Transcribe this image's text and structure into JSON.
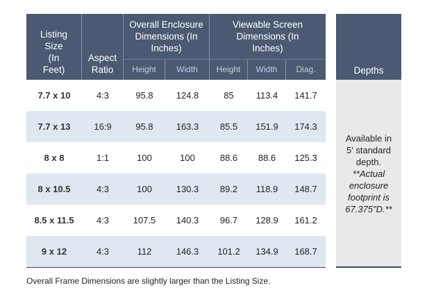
{
  "table": {
    "headers": {
      "listing_size": "Listing Size (In Feet)",
      "aspect_ratio": "Aspect Ratio",
      "enclosure": "Overall Enclosure Dimensions (In Inches)",
      "screen": "Viewable Screen Dimensions (In Inches)",
      "sub": [
        "Height",
        "Width",
        "Height",
        "Width",
        "Diag."
      ]
    },
    "rows": [
      [
        "7.7 x 10",
        "4:3",
        "95.8",
        "124.8",
        "85",
        "113.4",
        "141.7"
      ],
      [
        "7.7 x 13",
        "16:9",
        "95.8",
        "163.3",
        "85.5",
        "151.9",
        "174.3"
      ],
      [
        "8 x 8",
        "1:1",
        "100",
        "100",
        "88.6",
        "88.6",
        "125.3"
      ],
      [
        "8 x 10.5",
        "4:3",
        "100",
        "130.3",
        "89.2",
        "118.9",
        "148.7"
      ],
      [
        "8.5 x 11.5",
        "4:3",
        "107.5",
        "140.3",
        "96.7",
        "128.9",
        "161.2"
      ],
      [
        "9 x 12",
        "4:3",
        "112",
        "146.3",
        "101.2",
        "134.9",
        "168.7"
      ]
    ]
  },
  "depths": {
    "header": "Depths",
    "text": "Available in 5' standard depth.",
    "note": "**Actual enclosure footprint is 67.375\"D.**"
  },
  "footnote": "Overall Frame Dimensions are slightly larger than the Listing Size."
}
